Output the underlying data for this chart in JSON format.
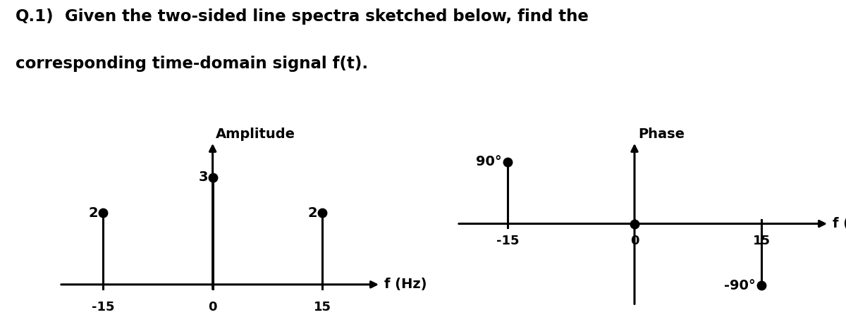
{
  "title_bold": "Q.1)",
  "title_rest_line1": " Given the two-sided line spectra sketched below, find the",
  "title_line2": "corresponding time-domain signal f(t).",
  "title_fontsize": 16.5,
  "bg_color": "#ffffff",
  "amp_ylabel": "Amplitude",
  "amp_xlabel": "f (Hz)",
  "amp_spikes": [
    {
      "f": -15,
      "amp": 2,
      "label": "2"
    },
    {
      "f": 0,
      "amp": 3,
      "label": "3"
    },
    {
      "f": 15,
      "amp": 2,
      "label": "2"
    }
  ],
  "amp_xlim": [
    -21,
    23
  ],
  "amp_ylim": [
    -0.6,
    4.0
  ],
  "amp_xticks": [
    -15,
    0,
    15
  ],
  "phase_ylabel": "Phase",
  "phase_xlabel": "f (Hz)",
  "phase_spikes": [
    {
      "f": -15,
      "phase": 90,
      "label": "90°"
    },
    {
      "f": 15,
      "phase": -90,
      "label": "-90°"
    }
  ],
  "phase_xlim": [
    -21,
    23
  ],
  "phase_ylim": [
    -120,
    120
  ],
  "phase_xticks": [
    -15,
    0,
    15
  ],
  "line_color": "#000000",
  "dot_color": "#000000",
  "dot_size": 9,
  "line_width": 2.2,
  "spike_lw": 2.2
}
